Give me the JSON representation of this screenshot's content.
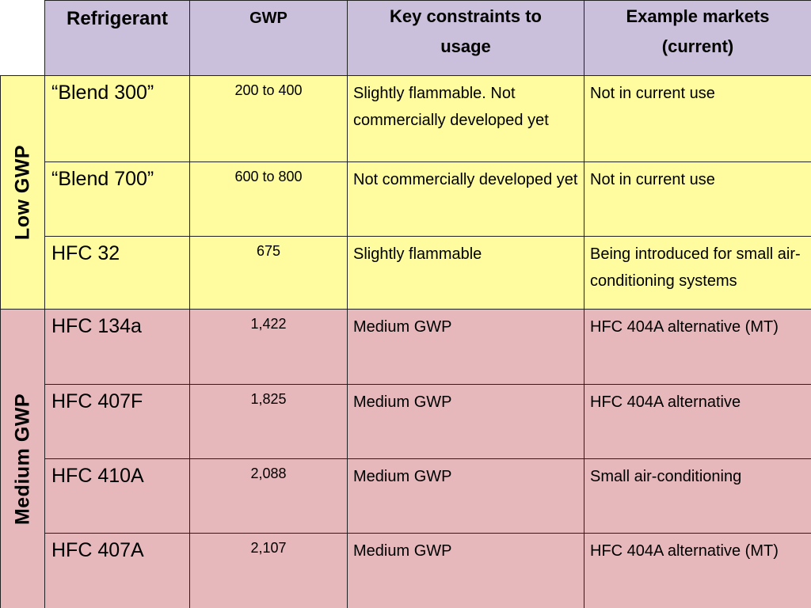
{
  "headers": {
    "refrigerant": "Refrigerant",
    "gwp": "GWP",
    "constraints_line1": "Key constraints to",
    "constraints_line2": "usage",
    "markets_line1": "Example markets",
    "markets_line2": "(current)"
  },
  "groups": {
    "low": "Low GWP",
    "medium": "Medium GWP"
  },
  "rows": [
    {
      "refrigerant": "“Blend 300”",
      "gwp": "200 to 400",
      "constraints": "Slightly flammable.  Not commercially developed yet",
      "markets": "Not in current use"
    },
    {
      "refrigerant": "“Blend 700”",
      "gwp": "600 to 800",
      "constraints": "Not commercially developed yet",
      "markets": "Not in current use"
    },
    {
      "refrigerant": "HFC 32",
      "gwp": "675",
      "constraints": "Slightly flammable",
      "markets": "Being introduced for small air-conditioning systems"
    },
    {
      "refrigerant": "HFC 134a",
      "gwp": "1,422",
      "constraints": "Medium GWP",
      "markets": "HFC 404A alternative (MT)"
    },
    {
      "refrigerant": "HFC 407F",
      "gwp": "1,825",
      "constraints": "Medium GWP",
      "markets": "HFC 404A alternative"
    },
    {
      "refrigerant": "HFC 410A",
      "gwp": "2,088",
      "constraints": "Medium GWP",
      "markets": "Small air-conditioning"
    },
    {
      "refrigerant": "HFC 407A",
      "gwp": "2,107",
      "constraints": "Medium GWP",
      "markets": "HFC 404A alternative (MT)"
    }
  ],
  "colors": {
    "header_bg": "#cbc0db",
    "low_gwp_bg": "#fefc9e",
    "medium_gwp_bg": "#e6b8bb"
  }
}
